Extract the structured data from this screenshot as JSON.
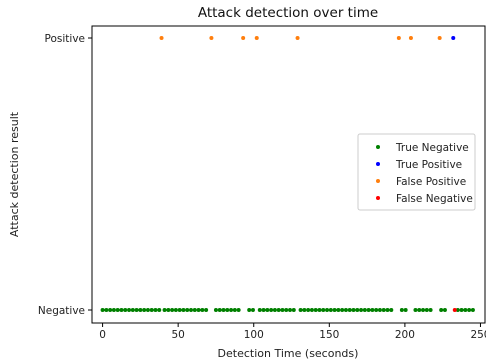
{
  "chart_data": {
    "type": "scatter",
    "title": "Attack detection over time",
    "xlabel": "Detection Time (seconds)",
    "ylabel": "Attack detection result",
    "xlim": [
      -7,
      253
    ],
    "xticks": [
      0,
      50,
      100,
      150,
      200,
      250
    ],
    "yticks": [
      {
        "value": 0,
        "label": "Negative"
      },
      {
        "value": 1,
        "label": "Positive"
      }
    ],
    "grid": false,
    "legend_position": "center-right",
    "series": [
      {
        "name": "True Negative",
        "color": "#008000",
        "y": 0,
        "x": [
          0,
          2.5,
          5,
          7.5,
          10,
          12.5,
          15,
          17.5,
          20,
          22.5,
          25,
          27.5,
          30,
          32.5,
          35,
          37.5,
          41,
          43.5,
          46,
          48.5,
          51,
          53.5,
          56,
          58.5,
          61,
          63.5,
          66,
          68.5,
          75,
          77.5,
          80,
          82.5,
          85,
          87.5,
          90,
          97,
          99.5,
          104,
          106.5,
          109,
          111.5,
          114,
          116.5,
          119,
          121.5,
          124,
          126.5,
          131,
          133.5,
          136,
          138.5,
          141,
          143.5,
          146,
          148.5,
          151,
          153.5,
          156,
          158.5,
          161,
          163.5,
          166,
          168.5,
          171,
          173.5,
          176,
          178.5,
          181,
          183.5,
          186,
          188.5,
          191,
          198,
          200.5,
          207,
          209.5,
          212,
          214.5,
          217,
          224,
          226.5,
          235,
          237.5,
          240,
          242.5,
          245
        ]
      },
      {
        "name": "True Positive",
        "color": "#0000ff",
        "y": 1,
        "x": [
          232
        ]
      },
      {
        "name": "False Positive",
        "color": "#ff7f0e",
        "y": 1,
        "x": [
          39,
          72,
          93,
          102,
          129,
          196,
          204,
          223
        ]
      },
      {
        "name": "False Negative",
        "color": "#ff0000",
        "y": 0,
        "x": [
          233
        ]
      }
    ]
  }
}
